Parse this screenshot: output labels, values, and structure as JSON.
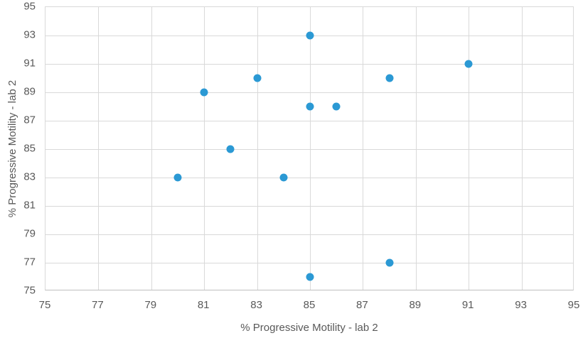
{
  "chart_data": {
    "type": "scatter",
    "title": "",
    "xlabel": "% Progressive Motility - lab 2",
    "ylabel": "% Progressive Motility - lab 2",
    "xlim": [
      75,
      95
    ],
    "ylim": [
      75,
      95
    ],
    "xticks": [
      75,
      77,
      79,
      81,
      83,
      85,
      87,
      89,
      91,
      93,
      95
    ],
    "yticks": [
      75,
      77,
      79,
      81,
      83,
      85,
      87,
      89,
      91,
      93,
      95
    ],
    "grid": true,
    "legend": false,
    "marker_color": "#2B99D4",
    "gridline_color": "#D9D9D9",
    "axisline_color": "#BFBFBF",
    "text_color": "#595959",
    "points": [
      {
        "x": 80,
        "y": 83
      },
      {
        "x": 81,
        "y": 89
      },
      {
        "x": 82,
        "y": 85
      },
      {
        "x": 83,
        "y": 90
      },
      {
        "x": 84,
        "y": 83
      },
      {
        "x": 85,
        "y": 76
      },
      {
        "x": 85,
        "y": 88
      },
      {
        "x": 85,
        "y": 93
      },
      {
        "x": 86,
        "y": 88
      },
      {
        "x": 88,
        "y": 77
      },
      {
        "x": 88,
        "y": 90
      },
      {
        "x": 91,
        "y": 91
      }
    ]
  }
}
